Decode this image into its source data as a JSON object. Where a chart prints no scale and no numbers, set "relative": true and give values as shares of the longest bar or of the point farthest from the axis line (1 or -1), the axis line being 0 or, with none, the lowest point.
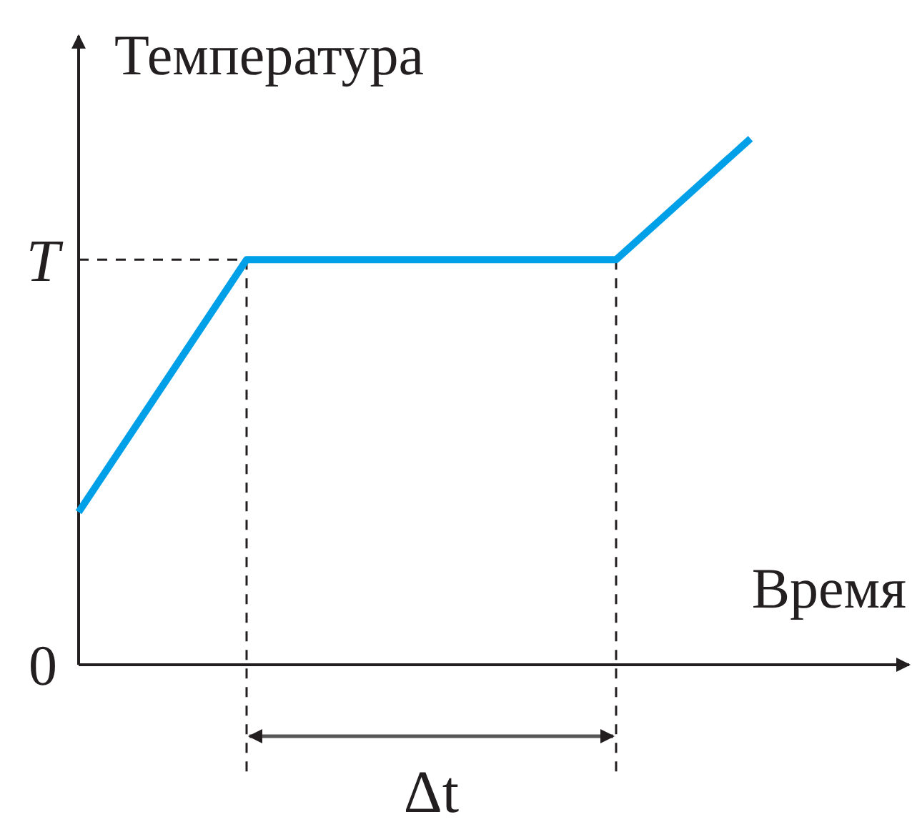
{
  "chart_data": {
    "type": "line",
    "relative": true,
    "xlabel": "Время",
    "ylabel": "Температура",
    "categories": [
      null,
      null,
      null,
      null,
      null,
      null,
      null,
      null,
      null,
      null,
      null,
      null,
      null,
      null,
      null,
      null,
      null,
      null,
      null,
      null,
      null
    ],
    "series": [
      {
        "color": "#00a0e9",
        "values": [
          0.29,
          null,
          null,
          null,
          null,
          0.77,
          null,
          null,
          null,
          null,
          null,
          null,
          null,
          null,
          null,
          null,
          0.77,
          null,
          null,
          null,
          1
        ]
      }
    ],
    "ref_lines": [
      {
        "axis": "y",
        "value": 0.77,
        "label": "T",
        "line_style": "dashed"
      }
    ],
    "annotations": [
      "0",
      "Δt"
    ],
    "line_style": "solid"
  }
}
